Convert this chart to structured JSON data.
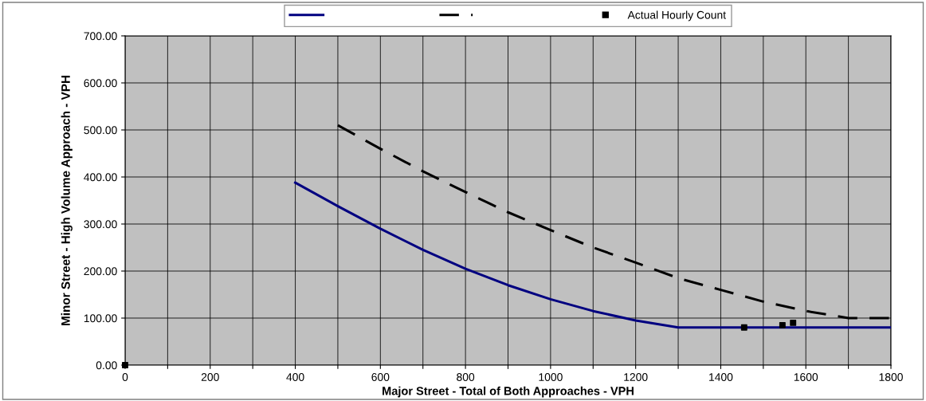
{
  "chart_data": {
    "type": "line",
    "xlabel": "Major Street - Total of Both Approaches - VPH",
    "ylabel": "Minor Street - High Volume Approach - VPH",
    "series": [
      {
        "color": "#000080",
        "line_style": "solid",
        "marker": "none",
        "x": [
          400,
          500,
          600,
          700,
          800,
          900,
          1000,
          1100,
          1200,
          1300,
          1400,
          1500,
          1600,
          1700,
          1800
        ],
        "values": [
          388,
          338,
          290,
          245,
          205,
          170,
          140,
          115,
          95,
          80,
          80,
          80,
          80,
          80,
          80
        ]
      },
      {
        "color": "#000000",
        "line_style": "dashed",
        "marker": "none",
        "x": [
          500,
          600,
          700,
          800,
          900,
          1000,
          1100,
          1200,
          1300,
          1400,
          1500,
          1600,
          1700,
          1800
        ],
        "values": [
          510,
          460,
          412,
          368,
          325,
          287,
          250,
          218,
          185,
          160,
          135,
          115,
          100,
          100
        ]
      },
      {
        "name": "Actual Hourly Count",
        "type": "scatter",
        "color": "#000000",
        "marker": "square",
        "x": [
          0,
          1455,
          1545,
          1570
        ],
        "values": [
          0,
          80,
          85,
          90
        ]
      }
    ],
    "xlim": [
      0,
      1800
    ],
    "ylim": [
      0,
      700
    ],
    "xticks": [
      0,
      {
        "value": 100,
        "label": null
      },
      200,
      {
        "value": 300,
        "label": null
      },
      400,
      {
        "value": 500,
        "label": null
      },
      600,
      {
        "value": 700,
        "label": null
      },
      800,
      {
        "value": 900,
        "label": null
      },
      1000,
      {
        "value": 1100,
        "label": null
      },
      1200,
      {
        "value": 1300,
        "label": null
      },
      1400,
      {
        "value": 1500,
        "label": null
      },
      1600,
      {
        "value": 1700,
        "label": null
      },
      1800
    ],
    "yticks": [
      {
        "value": 0,
        "label": "0.00"
      },
      {
        "value": 100,
        "label": "100.00"
      },
      {
        "value": 200,
        "label": "200.00"
      },
      {
        "value": 300,
        "label": "300.00"
      },
      {
        "value": 400,
        "label": "400.00"
      },
      {
        "value": 500,
        "label": "500.00"
      },
      {
        "value": 600,
        "label": "600.00"
      },
      {
        "value": 700,
        "label": "700.00"
      }
    ],
    "grid": true,
    "legend": "top"
  }
}
